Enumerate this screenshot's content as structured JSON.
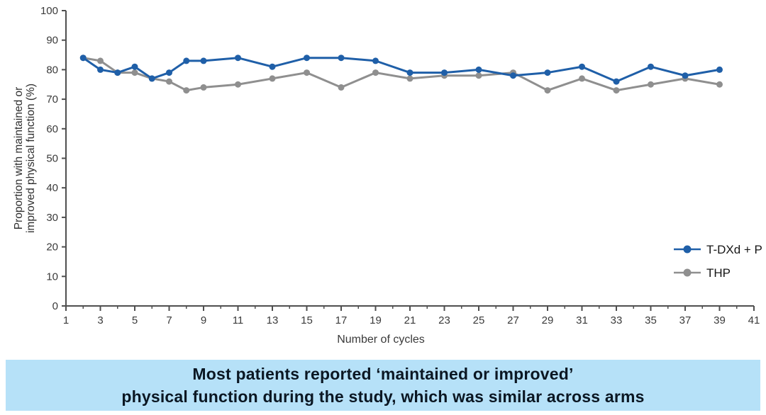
{
  "chart_data": {
    "type": "line",
    "title": "",
    "grid": false,
    "legend_position": "right-lower",
    "x_axis": {
      "label": "Number of cycles",
      "min": 1,
      "max": 41,
      "minor_tick_step": 1,
      "labeled_ticks": [
        1,
        3,
        5,
        7,
        9,
        11,
        13,
        15,
        17,
        19,
        21,
        23,
        25,
        27,
        29,
        31,
        33,
        35,
        37,
        39,
        41
      ]
    },
    "y_axis": {
      "label_lines": [
        "Proportion with maintained or",
        "improved physical function (%)"
      ],
      "min": 0,
      "max": 100,
      "tick_step": 10
    },
    "series": [
      {
        "name": "T-DXd + P",
        "color": "#1f5fa8",
        "points": [
          [
            2,
            84
          ],
          [
            3,
            80
          ],
          [
            4,
            79
          ],
          [
            5,
            81
          ],
          [
            6,
            77
          ],
          [
            7,
            79
          ],
          [
            8,
            83
          ],
          [
            9,
            83
          ],
          [
            11,
            84
          ],
          [
            13,
            81
          ],
          [
            15,
            84
          ],
          [
            17,
            84
          ],
          [
            19,
            83
          ],
          [
            21,
            79
          ],
          [
            23,
            79
          ],
          [
            25,
            80
          ],
          [
            27,
            78
          ],
          [
            29,
            79
          ],
          [
            31,
            81
          ],
          [
            33,
            76
          ],
          [
            35,
            81
          ],
          [
            37,
            78
          ],
          [
            39,
            80
          ]
        ]
      },
      {
        "name": "THP",
        "color": "#8f8f8f",
        "points": [
          [
            2,
            84
          ],
          [
            3,
            83
          ],
          [
            4,
            79
          ],
          [
            5,
            79
          ],
          [
            6,
            77
          ],
          [
            7,
            76
          ],
          [
            8,
            73
          ],
          [
            9,
            74
          ],
          [
            11,
            75
          ],
          [
            13,
            77
          ],
          [
            15,
            79
          ],
          [
            17,
            74
          ],
          [
            19,
            79
          ],
          [
            21,
            77
          ],
          [
            23,
            78
          ],
          [
            25,
            78
          ],
          [
            27,
            79
          ],
          [
            29,
            73
          ],
          [
            31,
            77
          ],
          [
            33,
            73
          ],
          [
            35,
            75
          ],
          [
            37,
            77
          ],
          [
            39,
            75
          ]
        ]
      }
    ],
    "axis_color": "#4f4f4f",
    "tick_label_color": "#3a3a3a"
  },
  "caption": {
    "lines": [
      "Most patients reported ‘maintained or improved’",
      "physical function during the study, which was similar across arms"
    ],
    "bg": "#b6e1f8",
    "text_color": "#0b1723"
  }
}
